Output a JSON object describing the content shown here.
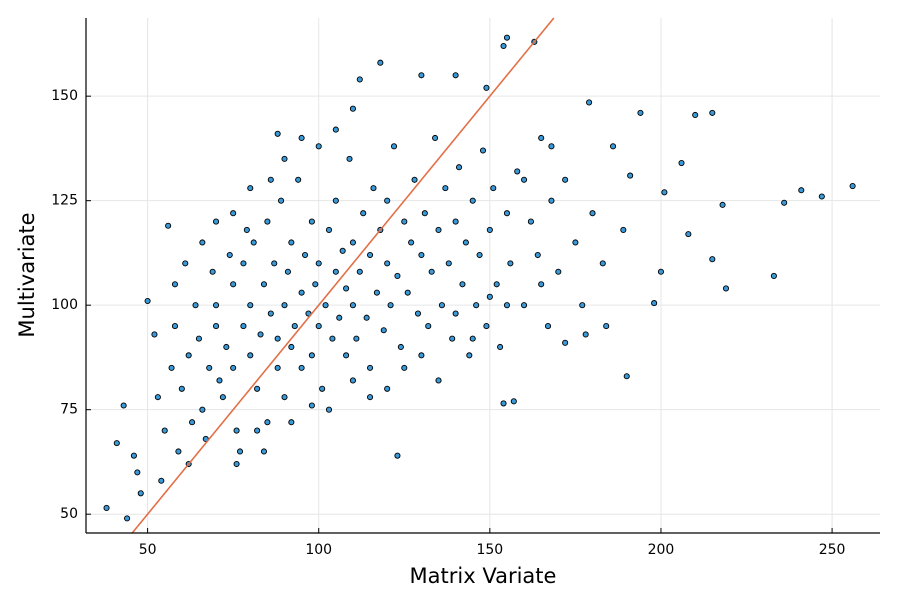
{
  "chart_data": {
    "type": "scatter",
    "xlabel": "Matrix Variate",
    "ylabel": "Multivariate",
    "xlim": [
      32,
      264
    ],
    "ylim": [
      45.5,
      168.7
    ],
    "xticks": [
      50,
      100,
      150,
      200,
      250
    ],
    "yticks": [
      50,
      75,
      100,
      125,
      150
    ],
    "grid": true,
    "series": [
      {
        "type": "scatter",
        "color": "#3a9ad9",
        "x": [
          38,
          44,
          50,
          56,
          256,
          247,
          241,
          236,
          233,
          219,
          215,
          215,
          210,
          208,
          206,
          200,
          198,
          190,
          184,
          157,
          154,
          123,
          155,
          154,
          163,
          118,
          130,
          112,
          140,
          149,
          179,
          194,
          172,
          178,
          110,
          88,
          201,
          218,
          191,
          52,
          41,
          43,
          47,
          46,
          48,
          60,
          62,
          65,
          66,
          68,
          70,
          70,
          72,
          73,
          75,
          75,
          76,
          78,
          78,
          80,
          80,
          81,
          82,
          83,
          84,
          85,
          85,
          86,
          87,
          88,
          88,
          89,
          90,
          90,
          91,
          92,
          92,
          93,
          94,
          95,
          95,
          96,
          97,
          98,
          98,
          99,
          100,
          100,
          101,
          102,
          103,
          104,
          105,
          105,
          106,
          107,
          108,
          108,
          109,
          110,
          110,
          111,
          112,
          113,
          114,
          115,
          115,
          116,
          117,
          118,
          119,
          120,
          120,
          121,
          122,
          123,
          124,
          125,
          126,
          127,
          128,
          129,
          130,
          131,
          132,
          133,
          134,
          135,
          136,
          137,
          138,
          139,
          140,
          141,
          142,
          143,
          144,
          145,
          146,
          147,
          148,
          149,
          150,
          151,
          152,
          153,
          155,
          156,
          158,
          160,
          162,
          164,
          165,
          167,
          168,
          170,
          172,
          175,
          177,
          180,
          183,
          186,
          189,
          55,
          57,
          58,
          59,
          63,
          64,
          67,
          69,
          71,
          74,
          77,
          79,
          82,
          86,
          90,
          95,
          100,
          105,
          110,
          115,
          120,
          125,
          130,
          135,
          140,
          145,
          150,
          155,
          160,
          165,
          168,
          53,
          58,
          61,
          66,
          70,
          75,
          80,
          98,
          103,
          92,
          84,
          76,
          62,
          54
        ],
        "values": [
          51.5,
          49,
          101,
          119,
          128.5,
          126,
          127.5,
          124.5,
          107,
          104,
          111,
          146,
          145.5,
          117,
          134,
          108,
          100.5,
          83,
          95,
          77,
          76.5,
          64,
          164,
          162,
          163,
          158,
          155,
          154,
          155,
          152,
          148.5,
          146,
          91,
          93,
          147,
          141,
          127,
          124,
          131,
          93,
          67,
          76,
          60,
          64,
          55,
          80,
          88,
          92,
          75,
          85,
          95,
          100,
          78,
          90,
          105,
          85,
          70,
          95,
          110,
          88,
          100,
          115,
          80,
          93,
          105,
          120,
          72,
          98,
          110,
          85,
          92,
          125,
          100,
          78,
          108,
          115,
          90,
          95,
          130,
          103,
          85,
          112,
          98,
          120,
          88,
          105,
          95,
          110,
          80,
          100,
          118,
          92,
          108,
          125,
          97,
          113,
          88,
          104,
          135,
          100,
          115,
          92,
          108,
          122,
          97,
          112,
          85,
          128,
          103,
          118,
          94,
          110,
          125,
          100,
          138,
          107,
          90,
          120,
          103,
          115,
          130,
          98,
          112,
          122,
          95,
          108,
          140,
          118,
          100,
          128,
          110,
          92,
          120,
          133,
          105,
          115,
          88,
          125,
          100,
          112,
          137,
          95,
          118,
          128,
          105,
          90,
          122,
          110,
          132,
          100,
          120,
          112,
          140,
          95,
          125,
          108,
          130,
          115,
          100,
          122,
          110,
          138,
          118,
          70,
          85,
          95,
          65,
          72,
          100,
          68,
          108,
          82,
          112,
          65,
          118,
          70,
          130,
          135,
          140,
          138,
          142,
          82,
          78,
          80,
          85,
          88,
          82,
          98,
          92,
          102,
          100,
          130,
          105,
          138,
          78,
          105,
          110,
          115,
          120,
          122,
          128,
          76,
          75,
          72,
          65,
          62,
          62,
          58
        ]
      },
      {
        "type": "line",
        "color": "#e26f46",
        "x": [
          45.5,
          168.7
        ],
        "values": [
          45.5,
          168.7
        ]
      }
    ]
  }
}
